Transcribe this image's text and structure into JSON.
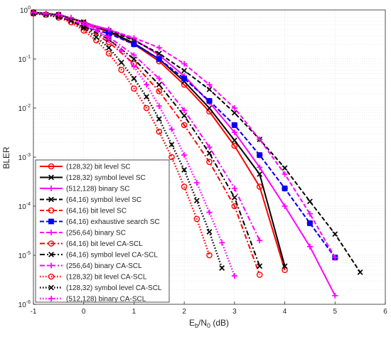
{
  "chart_data": {
    "type": "line",
    "xlabel_main": "E",
    "xlabel_sub1": "b",
    "xlabel_mid": "/N",
    "xlabel_sub2": "0",
    "xlabel_tail": " (dB)",
    "ylabel": "BLER",
    "xlim": [
      -1,
      6
    ],
    "ylim": [
      1e-06,
      1
    ],
    "yscale": "log",
    "grid": true,
    "legend_position": "bottom-left",
    "x_ticks": [
      {
        "v": -1,
        "label": "-1"
      },
      {
        "v": 0,
        "label": "0"
      },
      {
        "v": 1,
        "label": "1"
      },
      {
        "v": 2,
        "label": "2"
      },
      {
        "v": 3,
        "label": "3"
      },
      {
        "v": 4,
        "label": "4"
      },
      {
        "v": 5,
        "label": "5"
      },
      {
        "v": 6,
        "label": "6"
      }
    ],
    "y_ticks": [
      {
        "v": 1,
        "base": "10",
        "exp": "0"
      },
      {
        "v": 0.1,
        "base": "10",
        "exp": "-1"
      },
      {
        "v": 0.01,
        "base": "10",
        "exp": "-2"
      },
      {
        "v": 0.001,
        "base": "10",
        "exp": "-3"
      },
      {
        "v": 0.0001,
        "base": "10",
        "exp": "-4"
      },
      {
        "v": 1e-05,
        "base": "10",
        "exp": "-5"
      },
      {
        "v": 1e-06,
        "base": "10",
        "exp": "-6"
      }
    ],
    "series": [
      {
        "name": "(128,32) bit level SC",
        "color": "#ff0000",
        "dash": "solid",
        "marker": "circle",
        "width": 2,
        "x": [
          -1,
          -0.5,
          0,
          0.5,
          1,
          1.5,
          2,
          2.5,
          3,
          3.5,
          4
        ],
        "y": [
          0.9,
          0.8,
          0.55,
          0.35,
          0.2,
          0.09,
          0.03,
          0.0085,
          0.0017,
          0.00025,
          5e-06
        ]
      },
      {
        "name": "(128,32) symbol level SC",
        "color": "#000000",
        "dash": "solid",
        "marker": "x",
        "width": 2,
        "x": [
          -1,
          -0.5,
          0,
          0.5,
          1,
          1.5,
          2,
          2.5,
          3,
          3.5,
          4
        ],
        "y": [
          0.9,
          0.8,
          0.57,
          0.37,
          0.21,
          0.1,
          0.035,
          0.01,
          0.0022,
          0.00045,
          6e-06
        ]
      },
      {
        "name": "(512,128) binary SC",
        "color": "#ff00ff",
        "dash": "solid",
        "marker": "plus",
        "width": 2,
        "x": [
          0,
          0.5,
          1,
          1.5,
          2,
          2.5,
          3,
          3.5,
          4,
          4.5,
          5
        ],
        "y": [
          0.55,
          0.4,
          0.25,
          0.12,
          0.045,
          0.013,
          0.0032,
          0.00062,
          0.0001,
          1.5e-05,
          1.5e-06
        ]
      },
      {
        "name": "(64,16) symbol level SC",
        "color": "#000000",
        "dash": "dashed",
        "marker": "x",
        "width": 2,
        "x": [
          0,
          0.5,
          1,
          1.5,
          2,
          2.5,
          3,
          3.5,
          4,
          4.5,
          5,
          5.5
        ],
        "y": [
          0.5,
          0.38,
          0.24,
          0.13,
          0.058,
          0.024,
          0.008,
          0.0023,
          0.0006,
          0.000125,
          2.7e-05,
          4.5e-06
        ]
      },
      {
        "name": "(64,16) bit level SC",
        "color": "#ff0000",
        "dash": "dashed",
        "marker": "circle",
        "width": 2,
        "x": [
          0,
          0.5,
          1,
          1.5,
          2,
          2.5,
          3,
          3.5,
          4,
          4.5,
          5
        ],
        "y": [
          0.45,
          0.33,
          0.2,
          0.1,
          0.04,
          0.014,
          0.0045,
          0.0011,
          0.00023,
          4.5e-05,
          9e-06
        ]
      },
      {
        "name": "(64,16) exhaustive search SC",
        "color": "#0000ff",
        "dash": "dashed",
        "marker": "square",
        "width": 2,
        "x": [
          0,
          0.5,
          1,
          1.5,
          2,
          2.5,
          3,
          3.5,
          4,
          4.5,
          5
        ],
        "y": [
          0.45,
          0.33,
          0.2,
          0.1,
          0.04,
          0.014,
          0.0045,
          0.0011,
          0.00023,
          4.5e-05,
          9e-06
        ]
      },
      {
        "name": "(256,64) binary SC",
        "color": "#ff00ff",
        "dash": "dashed",
        "marker": "plus",
        "width": 2,
        "x": [
          0,
          0.5,
          1,
          1.5,
          2,
          2.5,
          3,
          3.5,
          4,
          4.5,
          5
        ],
        "y": [
          0.5,
          0.4,
          0.27,
          0.17,
          0.08,
          0.03,
          0.01,
          0.0023,
          0.00045,
          7e-05,
          9e-06
        ]
      },
      {
        "name": "(64,16) bit level CA-SCL",
        "color": "#ff0000",
        "dash": "dashdot",
        "marker": "circle",
        "width": 2,
        "x": [
          -1,
          -0.5,
          0,
          0.5,
          1,
          1.5,
          2,
          2.5,
          3,
          3.5
        ],
        "y": [
          0.85,
          0.75,
          0.45,
          0.22,
          0.08,
          0.022,
          0.0045,
          0.0008,
          0.0001,
          4e-06
        ]
      },
      {
        "name": "(64,16) symbol level CA-SCL",
        "color": "#000000",
        "dash": "dashdot",
        "marker": "x",
        "width": 2,
        "x": [
          -1,
          -0.5,
          0,
          0.5,
          1,
          1.5,
          2,
          2.5,
          3,
          3.5
        ],
        "y": [
          0.85,
          0.75,
          0.47,
          0.25,
          0.1,
          0.03,
          0.007,
          0.0012,
          0.00015,
          6e-06
        ]
      },
      {
        "name": "(256,64) binary CA-SCL",
        "color": "#ff00ff",
        "dash": "dashdot",
        "marker": "plus",
        "width": 2,
        "x": [
          -1,
          -0.5,
          0,
          0.5,
          1,
          1.5,
          2,
          2.5,
          3,
          3.5
        ],
        "y": [
          0.85,
          0.75,
          0.5,
          0.28,
          0.12,
          0.04,
          0.009,
          0.0016,
          0.00023,
          2e-05
        ]
      },
      {
        "name": "(128,32) bit level CA-SCL",
        "color": "#ff0000",
        "dash": "dotted",
        "marker": "circle",
        "width": 2.5,
        "x": [
          -1,
          -0.75,
          -0.5,
          -0.25,
          0,
          0.25,
          0.5,
          0.75,
          1,
          1.25,
          1.5,
          1.75,
          2,
          2.25,
          2.5
        ],
        "y": [
          0.85,
          0.8,
          0.7,
          0.56,
          0.38,
          0.24,
          0.13,
          0.06,
          0.025,
          0.01,
          0.0033,
          0.001,
          0.00025,
          5.5e-05,
          1e-05
        ]
      },
      {
        "name": "(128,32) symbol level CA-SCL",
        "color": "#000000",
        "dash": "dotted",
        "marker": "x",
        "width": 2.5,
        "x": [
          -1,
          -0.75,
          -0.5,
          -0.25,
          0,
          0.25,
          0.5,
          0.75,
          1,
          1.25,
          1.5,
          1.75,
          2,
          2.25,
          2.5,
          2.75
        ],
        "y": [
          0.85,
          0.8,
          0.72,
          0.6,
          0.43,
          0.28,
          0.17,
          0.085,
          0.04,
          0.017,
          0.006,
          0.0018,
          0.00055,
          0.00013,
          3e-05,
          5.5e-06
        ]
      },
      {
        "name": "(512,128) binary CA-SCL",
        "color": "#ff00ff",
        "dash": "dotted",
        "marker": "plus",
        "width": 2.5,
        "x": [
          -1,
          -0.75,
          -0.5,
          -0.25,
          0,
          0.25,
          0.5,
          0.75,
          1,
          1.25,
          1.5,
          1.75,
          2,
          2.25,
          2.5,
          2.75,
          3
        ],
        "y": [
          0.9,
          0.85,
          0.8,
          0.7,
          0.55,
          0.4,
          0.25,
          0.15,
          0.07,
          0.03,
          0.011,
          0.0037,
          0.0011,
          0.0003,
          7.5e-05,
          1.8e-05,
          3.8e-06
        ]
      }
    ]
  }
}
